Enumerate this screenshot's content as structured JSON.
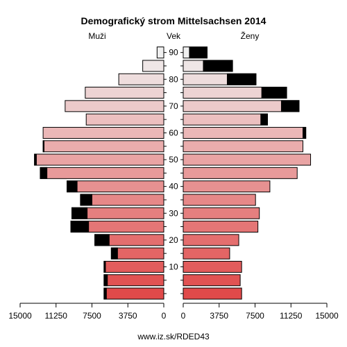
{
  "chart_data": {
    "type": "bar",
    "title": "Demografický strom Mittelsachsen 2014",
    "left_label": "Muži",
    "center_label": "Vek",
    "right_label": "Ženy",
    "footer": "www.iz.sk/RDED43",
    "age_groups": [
      "0-4",
      "5-9",
      "10-14",
      "15-19",
      "20-24",
      "25-29",
      "30-34",
      "35-39",
      "40-44",
      "45-49",
      "50-54",
      "55-59",
      "60-64",
      "65-69",
      "70-74",
      "75-79",
      "80-84",
      "85-89",
      "90+"
    ],
    "age_tick_labels": [
      {
        "age_group": "10-14",
        "label": "10"
      },
      {
        "age_group": "20-24",
        "label": "20"
      },
      {
        "age_group": "30-34",
        "label": "30"
      },
      {
        "age_group": "40-44",
        "label": "40"
      },
      {
        "age_group": "50-54",
        "label": "50"
      },
      {
        "age_group": "60-64",
        "label": "60"
      },
      {
        "age_group": "70-74",
        "label": "70"
      },
      {
        "age_group": "80-84",
        "label": "80"
      },
      {
        "age_group": "90+",
        "label": "90"
      }
    ],
    "series": [
      {
        "name": "Muži",
        "values": [
          6240,
          6240,
          6240,
          5480,
          7200,
          9700,
          9600,
          8700,
          10100,
          12900,
          13500,
          12600,
          12600,
          8100,
          10300,
          8200,
          4700,
          2200,
          700
        ],
        "excess": [
          250,
          350,
          150,
          650,
          1500,
          1850,
          1600,
          1200,
          1050,
          700,
          200,
          100,
          0,
          0,
          0,
          0,
          0,
          0,
          0
        ]
      },
      {
        "name": "Ženy",
        "values": [
          6100,
          5950,
          6100,
          4850,
          5800,
          7800,
          7950,
          7550,
          9050,
          11900,
          13300,
          12500,
          12800,
          8800,
          12100,
          10800,
          7600,
          5150,
          2500
        ],
        "excess": [
          0,
          0,
          0,
          0,
          0,
          0,
          0,
          0,
          0,
          0,
          0,
          0,
          300,
          700,
          1850,
          2600,
          3000,
          3050,
          1850
        ]
      }
    ],
    "x_tick_labels_left": [
      "15000",
      "11250",
      "7500",
      "3750",
      "0"
    ],
    "x_tick_labels_right": [
      "0",
      "3750",
      "7500",
      "11250",
      "15000"
    ],
    "x_tick_values": [
      0,
      3750,
      7500,
      11250,
      15000
    ],
    "xlim": [
      0,
      15000
    ],
    "color_ramp": {
      "low": "#e04a4a",
      "mid": "#e89a9a",
      "high": "#f0f0f0"
    }
  }
}
